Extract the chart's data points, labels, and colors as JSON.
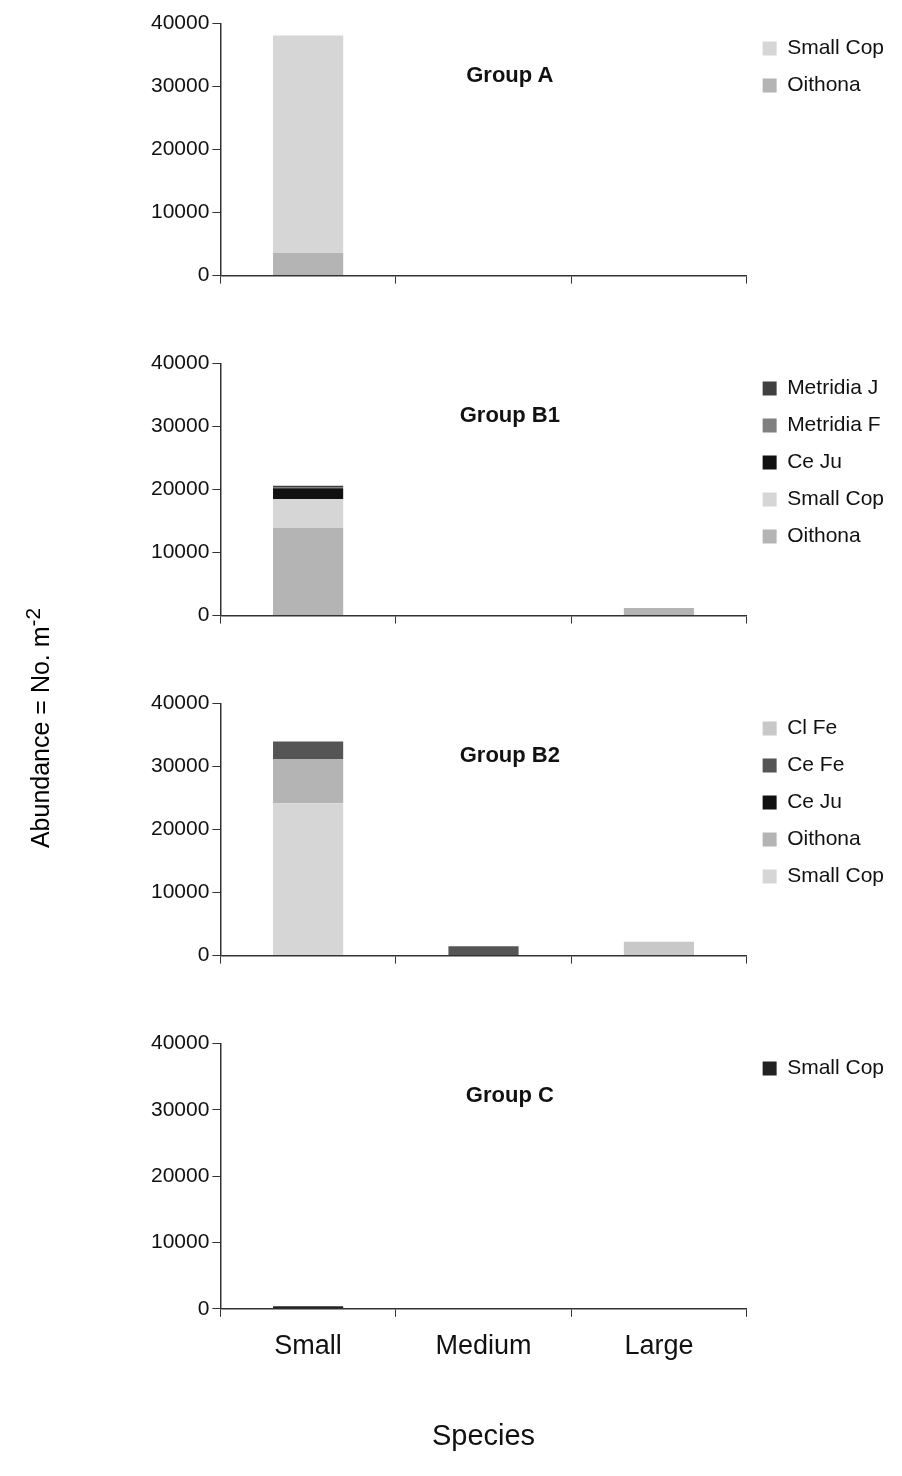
{
  "chart_data": [
    {
      "type": "bar",
      "title": "Group A",
      "categories": [
        null,
        null,
        null
      ],
      "stacked": true,
      "ylim": [
        0,
        40000
      ],
      "yticks": [
        0,
        10000,
        20000,
        30000,
        40000
      ],
      "legend": "top right",
      "series": [
        {
          "name": "Oithona",
          "color": "#b4b4b4",
          "values": [
            3600,
            0,
            0
          ]
        },
        {
          "name": "Small Cop",
          "color": "#d6d6d6",
          "values": [
            34500,
            0,
            0
          ]
        }
      ]
    },
    {
      "type": "bar",
      "title": "Group B1",
      "ylabel": "Abundance = No. m$^{-2}$",
      "categories": [
        null,
        null,
        null
      ],
      "stacked": true,
      "ylim": [
        0,
        40000
      ],
      "yticks": [
        0,
        10000,
        20000,
        30000,
        40000
      ],
      "legend": "top right",
      "series": [
        {
          "name": "Oithona",
          "color": "#b4b4b4",
          "values": [
            13900,
            0,
            1200
          ]
        },
        {
          "name": "Small Cop",
          "color": "#d6d6d6",
          "values": [
            4600,
            0,
            0
          ]
        },
        {
          "name": "Ce Ju",
          "color": "#111111",
          "values": [
            1700,
            0,
            0
          ]
        },
        {
          "name": "Metridia F",
          "color": "#808080",
          "values": [
            200,
            0,
            0
          ]
        },
        {
          "name": "Metridia J",
          "color": "#404040",
          "values": [
            200,
            0,
            0
          ]
        }
      ]
    },
    {
      "type": "bar",
      "title": "Group B2",
      "categories": [
        null,
        null,
        null
      ],
      "stacked": true,
      "ylim": [
        0,
        40000
      ],
      "yticks": [
        0,
        10000,
        20000,
        30000,
        40000
      ],
      "legend": "top right",
      "series": [
        {
          "name": "Small Cop",
          "color": "#d6d6d6",
          "values": [
            24200,
            0,
            0
          ]
        },
        {
          "name": "Oithona",
          "color": "#b4b4b4",
          "values": [
            7000,
            0,
            0
          ]
        },
        {
          "name": "Ce Ju",
          "color": "#111111",
          "values": [
            0,
            0,
            0
          ]
        },
        {
          "name": "Ce Fe",
          "color": "#555555",
          "values": [
            2800,
            1500,
            0
          ]
        },
        {
          "name": "Cl Fe",
          "color": "#c8c8c8",
          "values": [
            0,
            0,
            2200
          ]
        }
      ]
    },
    {
      "type": "bar",
      "title": "Group C",
      "xlabel": "Species",
      "categories": [
        "Small",
        "Medium",
        "Large"
      ],
      "stacked": true,
      "ylim": [
        0,
        40000
      ],
      "yticks": [
        0,
        10000,
        20000,
        30000,
        40000
      ],
      "legend": "top right",
      "series": [
        {
          "name": "Small Cop",
          "color": "#222222",
          "values": [
            400,
            0,
            0
          ]
        }
      ]
    }
  ]
}
